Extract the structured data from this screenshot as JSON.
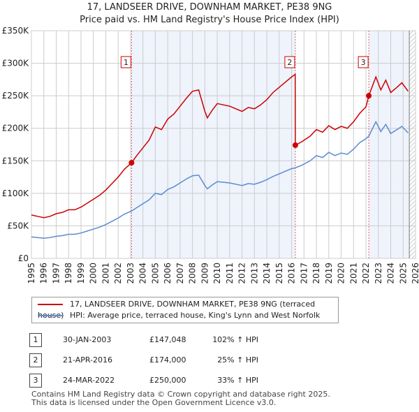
{
  "title": [
    "17, LANDSEER DRIVE, DOWNHAM MARKET, PE38 9NG",
    "Price paid vs. HM Land Registry's House Price Index (HPI)"
  ],
  "legend": {
    "red": "17, LANDSEER DRIVE, DOWNHAM MARKET, PE38 9NG (terraced house)",
    "blue": "HPI: Average price, terraced house, King's Lynn and West Norfolk"
  },
  "colors": {
    "red": "#cc0000",
    "blue": "#5b8bd0",
    "shade": "#eef3fc",
    "grid": "#cccccc"
  },
  "sales": [
    {
      "n": "1",
      "date": "30-JAN-2003",
      "price": "£147,048",
      "hpi": "102% ↑ HPI",
      "x": 2003.08,
      "y": 147
    },
    {
      "n": "2",
      "date": "21-APR-2016",
      "price": "£174,000",
      "hpi": "25% ↑ HPI",
      "x": 2016.3,
      "y": 174
    },
    {
      "n": "3",
      "date": "24-MAR-2022",
      "price": "£250,000",
      "hpi": "33% ↑ HPI",
      "x": 2022.23,
      "y": 250
    }
  ],
  "footer": [
    "Contains HM Land Registry data © Crown copyright and database right 2025.",
    "This data is licensed under the Open Government Licence v3.0."
  ],
  "chart_data": {
    "type": "line",
    "xlim": [
      1995,
      2026
    ],
    "ylim": [
      0,
      350
    ],
    "x_ticks": [
      1995,
      1996,
      1997,
      1998,
      1999,
      2000,
      2001,
      2002,
      2003,
      2004,
      2005,
      2006,
      2007,
      2008,
      2009,
      2010,
      2011,
      2012,
      2013,
      2014,
      2015,
      2016,
      2017,
      2018,
      2019,
      2020,
      2021,
      2022,
      2023,
      2024,
      2025,
      2026
    ],
    "y_ticks": [
      {
        "v": 0,
        "label": "£0"
      },
      {
        "v": 50,
        "label": "£50K"
      },
      {
        "v": 100,
        "label": "£100K"
      },
      {
        "v": 150,
        "label": "£150K"
      },
      {
        "v": 200,
        "label": "£200K"
      },
      {
        "v": 250,
        "label": "£250K"
      },
      {
        "v": 300,
        "label": "£300K"
      },
      {
        "v": 350,
        "label": "£350K"
      }
    ],
    "grid": true,
    "series": [
      {
        "name": "17, LANDSEER DRIVE, DOWNHAM MARKET, PE38 9NG (terraced house)",
        "color": "#cc0000",
        "points": [
          [
            1995,
            66.7
          ],
          [
            1995.5,
            64.6
          ],
          [
            1996,
            62.6
          ],
          [
            1996.5,
            64.6
          ],
          [
            1997,
            68.7
          ],
          [
            1997.5,
            70.7
          ],
          [
            1998,
            74.7
          ],
          [
            1998.5,
            74.7
          ],
          [
            1999,
            78.8
          ],
          [
            1999.5,
            84.8
          ],
          [
            2000,
            90.9
          ],
          [
            2000.5,
            97
          ],
          [
            2001,
            105
          ],
          [
            2001.5,
            115
          ],
          [
            2002,
            125
          ],
          [
            2002.5,
            137
          ],
          [
            2003.08,
            147
          ],
          [
            2003.5,
            158
          ],
          [
            2004,
            170
          ],
          [
            2004.5,
            182
          ],
          [
            2005,
            202
          ],
          [
            2005.5,
            198
          ],
          [
            2006,
            214
          ],
          [
            2006.5,
            222
          ],
          [
            2007,
            234
          ],
          [
            2007.5,
            246
          ],
          [
            2008,
            257
          ],
          [
            2008.5,
            259
          ],
          [
            2009,
            226
          ],
          [
            2009.2,
            216
          ],
          [
            2009.6,
            228
          ],
          [
            2010,
            238
          ],
          [
            2010.5,
            236
          ],
          [
            2011,
            234
          ],
          [
            2011.5,
            230
          ],
          [
            2012,
            226
          ],
          [
            2012.5,
            232
          ],
          [
            2013,
            230
          ],
          [
            2013.5,
            236
          ],
          [
            2014,
            244
          ],
          [
            2014.5,
            255
          ],
          [
            2015,
            263
          ],
          [
            2015.5,
            271
          ],
          [
            2016,
            279
          ],
          [
            2016.29,
            283
          ],
          [
            2016.3,
            174
          ],
          [
            2016.8,
            179
          ],
          [
            2017.5,
            188
          ],
          [
            2018,
            198
          ],
          [
            2018.5,
            194
          ],
          [
            2019,
            204
          ],
          [
            2019.5,
            198
          ],
          [
            2020,
            203
          ],
          [
            2020.5,
            200
          ],
          [
            2021,
            210
          ],
          [
            2021.5,
            223
          ],
          [
            2022,
            233
          ],
          [
            2022.23,
            250
          ],
          [
            2022.8,
            279
          ],
          [
            2023.2,
            259
          ],
          [
            2023.6,
            274
          ],
          [
            2024,
            255
          ],
          [
            2024.5,
            263
          ],
          [
            2024.9,
            270
          ],
          [
            2025.4,
            257
          ]
        ]
      },
      {
        "name": "HPI: Average price, terraced house, King's Lynn and West Norfolk",
        "color": "#5b8bd0",
        "points": [
          [
            1995,
            33
          ],
          [
            1995.5,
            32
          ],
          [
            1996,
            31
          ],
          [
            1996.5,
            32
          ],
          [
            1997,
            34
          ],
          [
            1997.5,
            35
          ],
          [
            1998,
            37
          ],
          [
            1998.5,
            37
          ],
          [
            1999,
            39
          ],
          [
            1999.5,
            42
          ],
          [
            2000,
            45
          ],
          [
            2000.5,
            48
          ],
          [
            2001,
            52
          ],
          [
            2001.5,
            57
          ],
          [
            2002,
            62
          ],
          [
            2002.5,
            68
          ],
          [
            2003.08,
            72.8
          ],
          [
            2003.5,
            78
          ],
          [
            2004,
            84
          ],
          [
            2004.5,
            90
          ],
          [
            2005,
            100
          ],
          [
            2005.5,
            98
          ],
          [
            2006,
            106
          ],
          [
            2006.5,
            110
          ],
          [
            2007,
            116
          ],
          [
            2007.5,
            122
          ],
          [
            2008,
            127
          ],
          [
            2008.5,
            128
          ],
          [
            2009,
            112
          ],
          [
            2009.2,
            107
          ],
          [
            2009.6,
            113
          ],
          [
            2010,
            118
          ],
          [
            2010.5,
            117
          ],
          [
            2011,
            116
          ],
          [
            2011.5,
            114
          ],
          [
            2012,
            112
          ],
          [
            2012.5,
            115
          ],
          [
            2013,
            114
          ],
          [
            2013.5,
            117
          ],
          [
            2014,
            121
          ],
          [
            2014.5,
            126
          ],
          [
            2015,
            130
          ],
          [
            2015.5,
            134
          ],
          [
            2016,
            138
          ],
          [
            2016.3,
            139.2
          ],
          [
            2016.8,
            143
          ],
          [
            2017.5,
            150
          ],
          [
            2018,
            158
          ],
          [
            2018.5,
            155
          ],
          [
            2019,
            163
          ],
          [
            2019.5,
            158
          ],
          [
            2020,
            162
          ],
          [
            2020.5,
            160
          ],
          [
            2021,
            168
          ],
          [
            2021.5,
            178
          ],
          [
            2022,
            184
          ],
          [
            2022.23,
            188
          ],
          [
            2022.8,
            210
          ],
          [
            2023.2,
            195
          ],
          [
            2023.6,
            206
          ],
          [
            2024,
            192
          ],
          [
            2024.5,
            198
          ],
          [
            2024.9,
            203
          ],
          [
            2025.4,
            193
          ]
        ]
      }
    ],
    "shaded_ranges": [
      [
        2003.08,
        2016.3
      ],
      [
        2022.23,
        2025.5
      ]
    ],
    "hatched_from": 2025.5
  }
}
